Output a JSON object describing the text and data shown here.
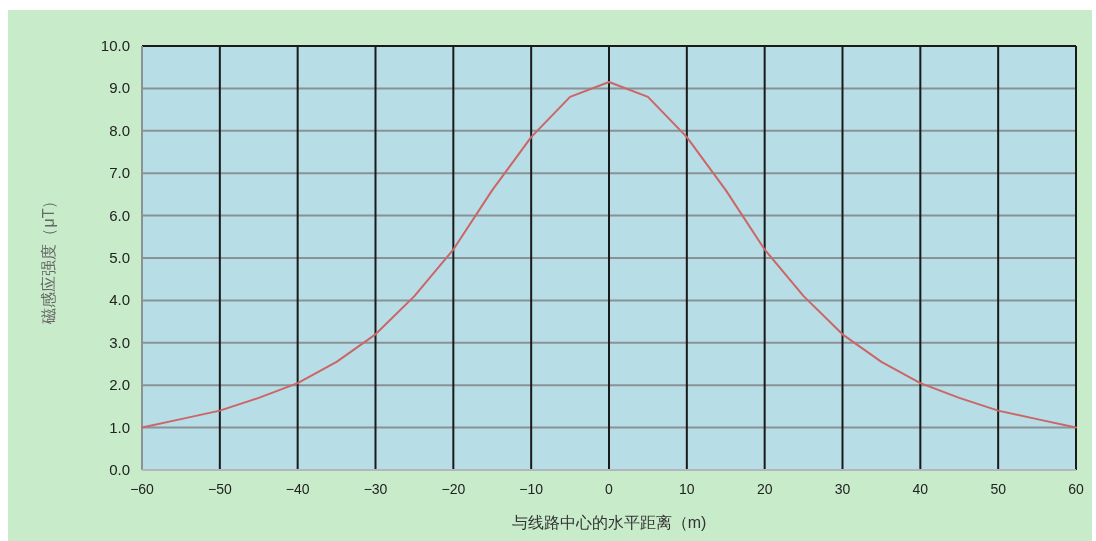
{
  "chart_data": {
    "type": "line",
    "xlabel": "与线路中心的水平距离（m)",
    "ylabel": "磁感应强度（μT）",
    "x": [
      -60,
      -55,
      -50,
      -45,
      -40,
      -35,
      -30,
      -25,
      -20,
      -15,
      -10,
      -5,
      0,
      5,
      10,
      15,
      20,
      25,
      30,
      35,
      40,
      45,
      50,
      55,
      60
    ],
    "series": [
      {
        "color": "#cc6666",
        "values": [
          1.0,
          1.2,
          1.4,
          1.7,
          2.05,
          2.55,
          3.2,
          4.1,
          5.2,
          6.6,
          7.85,
          8.8,
          9.15,
          8.8,
          7.85,
          6.6,
          5.2,
          4.1,
          3.2,
          2.55,
          2.05,
          1.7,
          1.4,
          1.2,
          1.0
        ]
      }
    ],
    "xlim": [
      -60,
      60
    ],
    "ylim": [
      0,
      10
    ],
    "xticks": [
      -60,
      -50,
      -40,
      -30,
      -20,
      -10,
      0,
      10,
      20,
      30,
      40,
      50,
      60
    ],
    "yticks": [
      {
        "value": 0,
        "label": "0.0"
      },
      {
        "value": 1,
        "label": "1.0"
      },
      {
        "value": 2,
        "label": "2.0"
      },
      {
        "value": 3,
        "label": "3.0"
      },
      {
        "value": 4,
        "label": "4.0"
      },
      {
        "value": 5,
        "label": "5.0"
      },
      {
        "value": 6,
        "label": "6.0"
      },
      {
        "value": 7,
        "label": "7.0"
      },
      {
        "value": 8,
        "label": "8.0"
      },
      {
        "value": 9,
        "label": "9.0"
      },
      {
        "value": 10,
        "label": "10.0"
      }
    ],
    "grid": true
  }
}
